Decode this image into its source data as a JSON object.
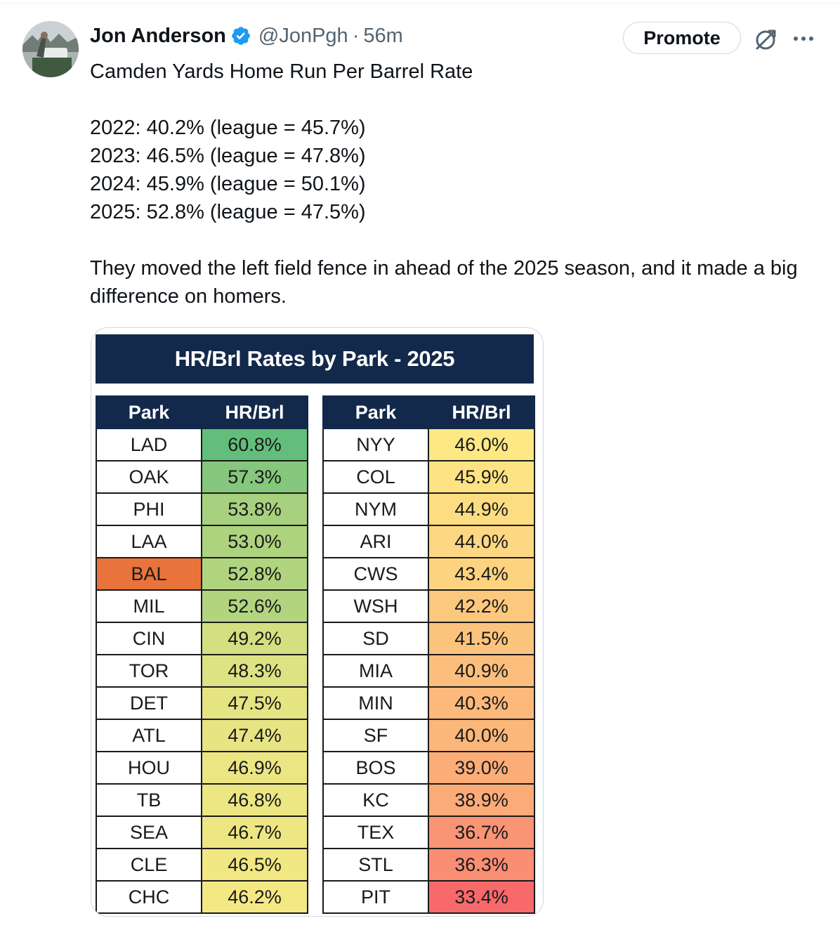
{
  "author": {
    "name": "Jon Anderson",
    "handle": "@JonPgh",
    "separator": "·",
    "time": "56m"
  },
  "actions": {
    "promote_label": "Promote",
    "grok_icon": "grok-icon",
    "more_icon": "more-icon"
  },
  "tweet": {
    "line1": "Camden Yards Home Run Per Barrel Rate",
    "stats": [
      "2022: 40.2% (league = 45.7%)",
      "2023: 46.5% (league = 47.8%)",
      "2024: 45.9% (league = 50.1%)",
      "2025: 52.8% (league = 47.5%)"
    ],
    "closing": "They moved the left field fence in ahead of the 2025 season, and it made a big difference on homers."
  },
  "table": {
    "title": "HR/Brl Rates by Park - 2025",
    "header_park": "Park",
    "header_rate": "HR/Brl",
    "left": [
      {
        "park": "LAD",
        "rate": "60.8%",
        "color": "#63be7b"
      },
      {
        "park": "OAK",
        "rate": "57.3%",
        "color": "#85c77c"
      },
      {
        "park": "PHI",
        "rate": "53.8%",
        "color": "#a7d17e"
      },
      {
        "park": "LAA",
        "rate": "53.0%",
        "color": "#aed37e"
      },
      {
        "park": "BAL",
        "rate": "52.8%",
        "color": "#b0d47f",
        "park_color": "#e8743b"
      },
      {
        "park": "MIL",
        "rate": "52.6%",
        "color": "#b2d47f"
      },
      {
        "park": "CIN",
        "rate": "49.2%",
        "color": "#d4df81"
      },
      {
        "park": "TOR",
        "rate": "48.3%",
        "color": "#dde282"
      },
      {
        "park": "DET",
        "rate": "47.5%",
        "color": "#e5e483"
      },
      {
        "park": "ATL",
        "rate": "47.4%",
        "color": "#e6e483"
      },
      {
        "park": "HOU",
        "rate": "46.9%",
        "color": "#ebe683"
      },
      {
        "park": "TB",
        "rate": "46.8%",
        "color": "#ece683"
      },
      {
        "park": "SEA",
        "rate": "46.7%",
        "color": "#eee683"
      },
      {
        "park": "CLE",
        "rate": "46.5%",
        "color": "#f1e783"
      },
      {
        "park": "CHC",
        "rate": "46.2%",
        "color": "#f4e884"
      }
    ],
    "right": [
      {
        "park": "NYY",
        "rate": "46.0%",
        "color": "#fde884"
      },
      {
        "park": "COL",
        "rate": "45.9%",
        "color": "#fde383"
      },
      {
        "park": "NYM",
        "rate": "44.9%",
        "color": "#fddd82"
      },
      {
        "park": "ARI",
        "rate": "44.0%",
        "color": "#fdd781"
      },
      {
        "park": "CWS",
        "rate": "43.4%",
        "color": "#fdd380"
      },
      {
        "park": "WSH",
        "rate": "42.2%",
        "color": "#fcc87e"
      },
      {
        "park": "SD",
        "rate": "41.5%",
        "color": "#fcc37d"
      },
      {
        "park": "MIA",
        "rate": "40.9%",
        "color": "#fcbe7c"
      },
      {
        "park": "MIN",
        "rate": "40.3%",
        "color": "#fcb97b"
      },
      {
        "park": "SF",
        "rate": "40.0%",
        "color": "#fbb67a"
      },
      {
        "park": "BOS",
        "rate": "39.0%",
        "color": "#fbad78"
      },
      {
        "park": "KC",
        "rate": "38.9%",
        "color": "#fbab78"
      },
      {
        "park": "TEX",
        "rate": "36.7%",
        "color": "#f99474"
      },
      {
        "park": "STL",
        "rate": "36.3%",
        "color": "#f98e73"
      },
      {
        "park": "PIT",
        "rate": "33.4%",
        "color": "#f8696b"
      }
    ]
  }
}
